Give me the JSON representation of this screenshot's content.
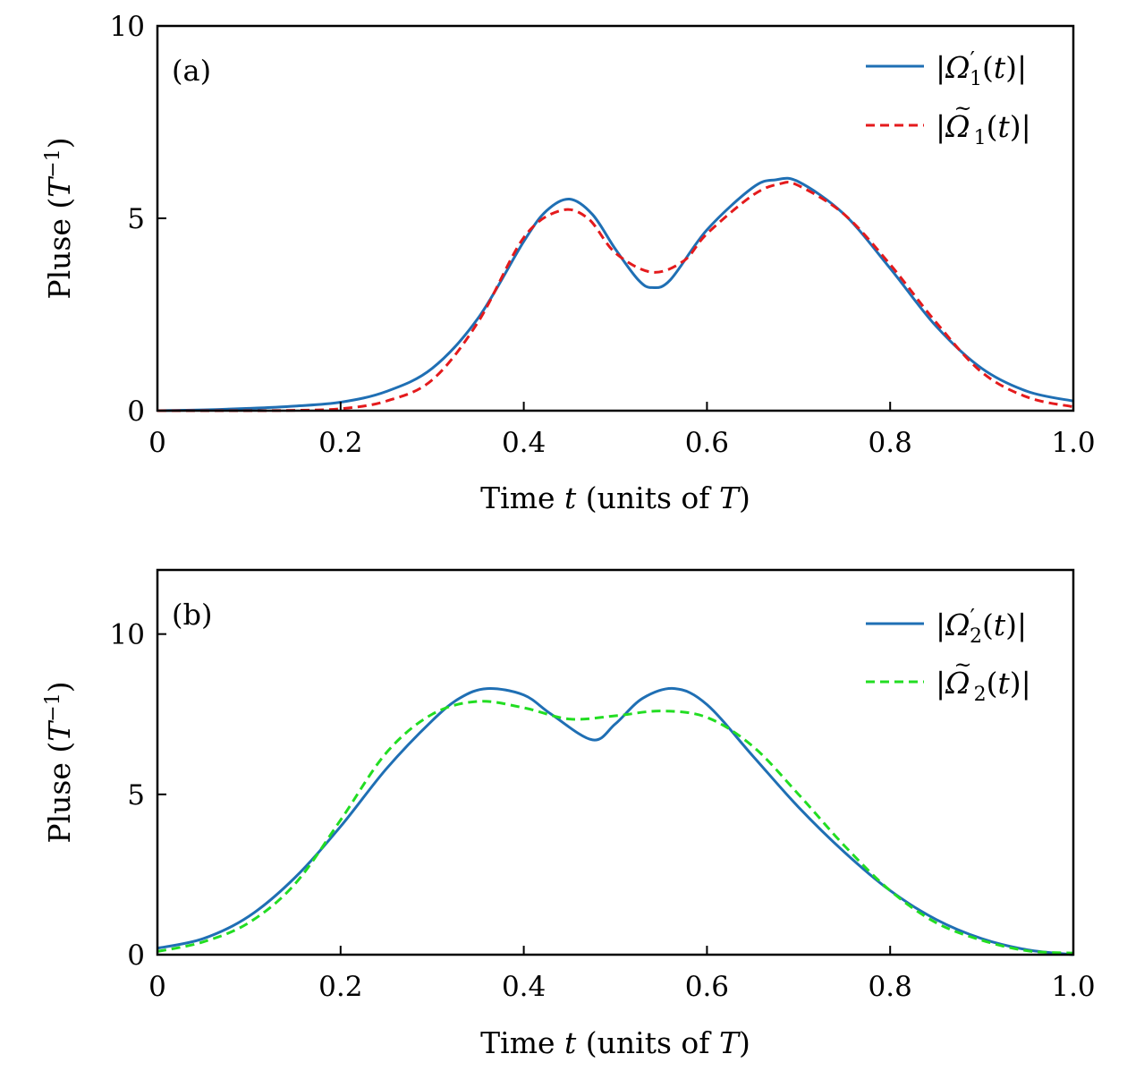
{
  "chart_data": [
    {
      "type": "line",
      "panel_label": "(a)",
      "xlabel": "Time t (units of T)",
      "ylabel": "Pluse (T⁻¹)",
      "xlim": [
        0,
        1
      ],
      "ylim": [
        0,
        10
      ],
      "xticks": [
        "0",
        "0.2",
        "0.4",
        "0.6",
        "0.8",
        "1.0"
      ],
      "xtick_values": [
        0,
        0.2,
        0.4,
        0.6,
        0.8,
        1.0
      ],
      "yticks": [
        "0",
        "5",
        "10"
      ],
      "ytick_values": [
        0,
        5,
        10
      ],
      "grid": false,
      "legend": "top-right",
      "series": [
        {
          "name": "|Ω′₁(t)|",
          "color": "#1f6fb4",
          "style": "solid",
          "x": [
            0,
            0.05,
            0.1,
            0.15,
            0.2,
            0.25,
            0.3,
            0.35,
            0.4,
            0.425,
            0.45,
            0.475,
            0.5,
            0.525,
            0.54,
            0.56,
            0.6,
            0.65,
            0.675,
            0.7,
            0.75,
            0.8,
            0.85,
            0.9,
            0.95,
            1.0
          ],
          "y": [
            0,
            0.02,
            0.06,
            0.12,
            0.22,
            0.5,
            1.1,
            2.4,
            4.4,
            5.2,
            5.5,
            5.1,
            4.2,
            3.4,
            3.2,
            3.4,
            4.7,
            5.8,
            6.0,
            5.95,
            5.1,
            3.7,
            2.2,
            1.1,
            0.5,
            0.25
          ]
        },
        {
          "name": "|Ω̃₁(t)|",
          "color": "#e41a1c",
          "style": "dashed",
          "x": [
            0,
            0.1,
            0.15,
            0.2,
            0.25,
            0.3,
            0.35,
            0.4,
            0.44,
            0.47,
            0.5,
            0.54,
            0.575,
            0.6,
            0.65,
            0.68,
            0.7,
            0.75,
            0.8,
            0.85,
            0.9,
            0.95,
            1.0
          ],
          "y": [
            0,
            0,
            0.01,
            0.05,
            0.25,
            0.8,
            2.3,
            4.5,
            5.2,
            5.0,
            4.1,
            3.6,
            3.9,
            4.6,
            5.6,
            5.9,
            5.85,
            5.1,
            3.8,
            2.3,
            1.0,
            0.35,
            0.1
          ]
        }
      ]
    },
    {
      "type": "line",
      "panel_label": "(b)",
      "xlabel": "Time t (units of T)",
      "ylabel": "Pluse (T⁻¹)",
      "xlim": [
        0,
        1
      ],
      "ylim": [
        0,
        12
      ],
      "xticks": [
        "0",
        "0.2",
        "0.4",
        "0.6",
        "0.8",
        "1.0"
      ],
      "xtick_values": [
        0,
        0.2,
        0.4,
        0.6,
        0.8,
        1.0
      ],
      "yticks": [
        "0",
        "5",
        "10"
      ],
      "ytick_values": [
        0,
        5,
        10
      ],
      "grid": false,
      "legend": "top-right",
      "series": [
        {
          "name": "|Ω′₂(t)|",
          "color": "#1f6fb4",
          "style": "solid",
          "x": [
            0,
            0.05,
            0.1,
            0.15,
            0.2,
            0.25,
            0.3,
            0.33,
            0.36,
            0.4,
            0.43,
            0.475,
            0.5,
            0.53,
            0.565,
            0.6,
            0.65,
            0.7,
            0.75,
            0.8,
            0.85,
            0.9,
            0.95,
            1.0
          ],
          "y": [
            0.2,
            0.5,
            1.2,
            2.4,
            4.0,
            5.8,
            7.3,
            8.0,
            8.3,
            8.1,
            7.5,
            6.7,
            7.2,
            8.0,
            8.3,
            7.8,
            6.2,
            4.6,
            3.2,
            2.0,
            1.1,
            0.5,
            0.15,
            0.0
          ]
        },
        {
          "name": "|Ω̃₂(t)|",
          "color": "#22dd22",
          "style": "dashed",
          "x": [
            0,
            0.05,
            0.1,
            0.15,
            0.2,
            0.25,
            0.3,
            0.35,
            0.4,
            0.45,
            0.5,
            0.55,
            0.6,
            0.65,
            0.7,
            0.75,
            0.8,
            0.85,
            0.9,
            0.95,
            1.0
          ],
          "y": [
            0.1,
            0.4,
            1.0,
            2.2,
            4.2,
            6.3,
            7.5,
            7.9,
            7.7,
            7.35,
            7.45,
            7.6,
            7.4,
            6.5,
            5.0,
            3.4,
            2.0,
            1.0,
            0.45,
            0.12,
            0.05
          ]
        }
      ]
    }
  ]
}
